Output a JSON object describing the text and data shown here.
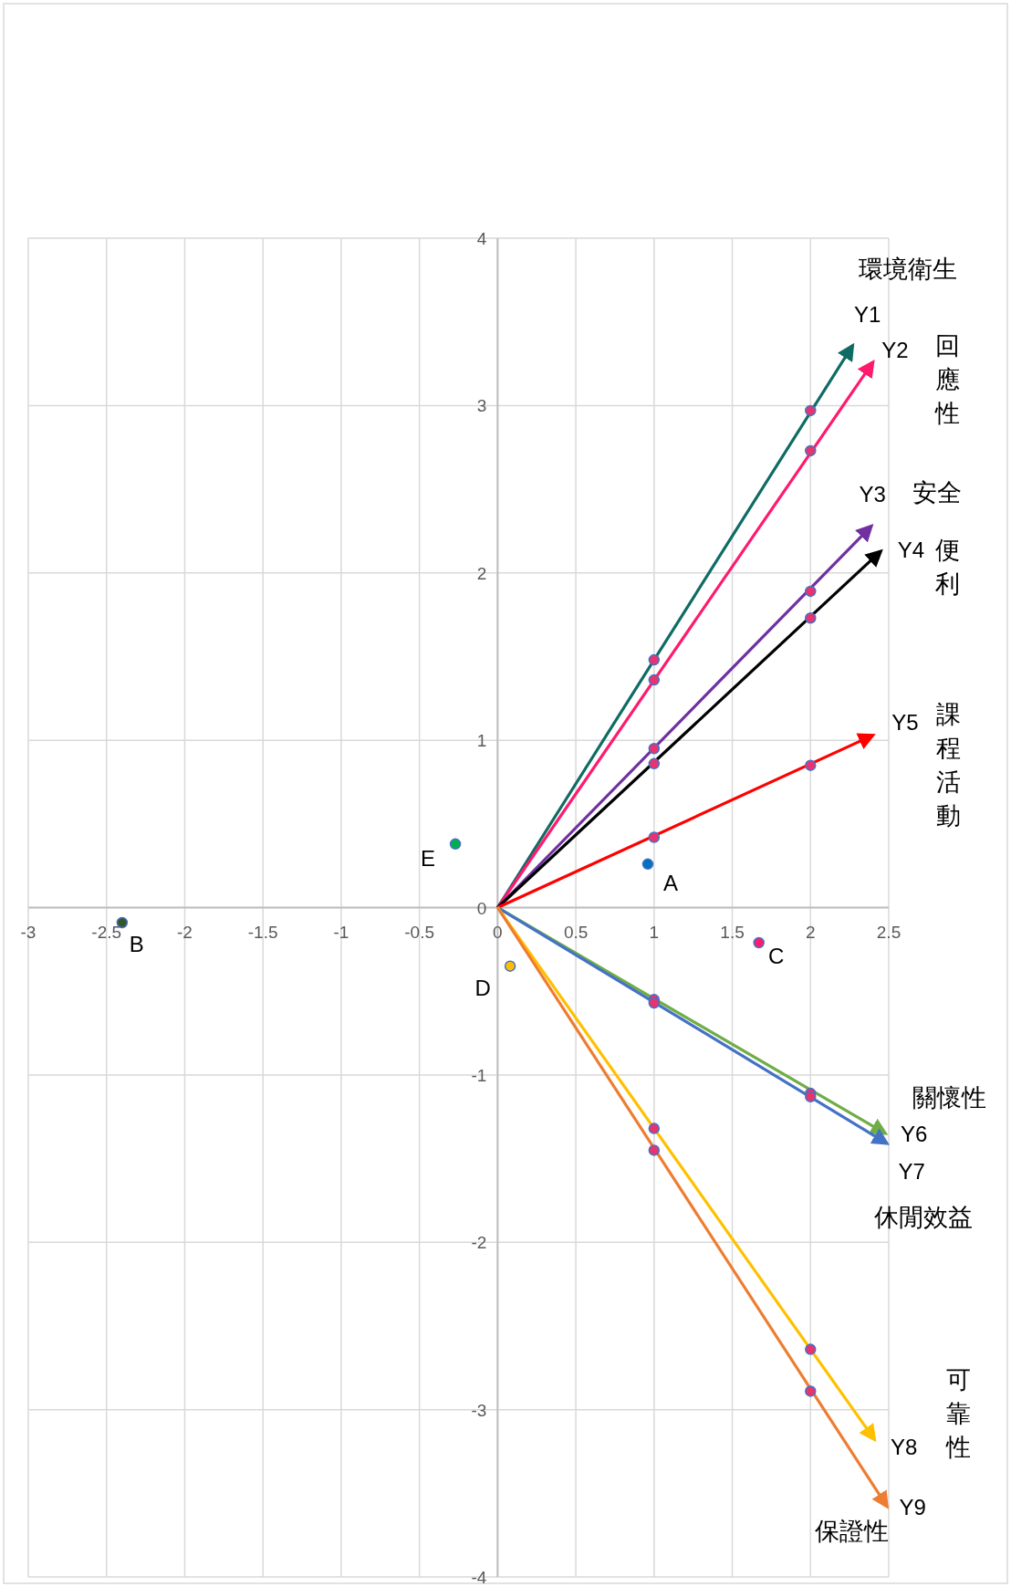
{
  "chart_data": {
    "type": "scatter",
    "xlim": [
      -3,
      2.5
    ],
    "ylim": [
      -4,
      4
    ],
    "xticks": [
      -3,
      -2.5,
      -2,
      -1.5,
      -1,
      -0.5,
      0,
      0.5,
      1,
      1.5,
      2,
      2.5
    ],
    "yticks": [
      -4,
      -3,
      -2,
      -1,
      0,
      1,
      2,
      3,
      4
    ],
    "grid": true,
    "series": [
      {
        "type": "scatter",
        "marker": "circle",
        "x": [
          0.96,
          -2.4,
          1.67,
          0.08,
          -0.27
        ],
        "values": [
          0.26,
          -0.09,
          -0.21,
          -0.35,
          0.38
        ],
        "colors": [
          "#0070c0",
          "#375623",
          "#ff1a6e",
          "#ffc000",
          "#00b050"
        ],
        "value_labels": [
          "A",
          "B",
          "C",
          "D",
          "E"
        ]
      },
      {
        "type": "scatter",
        "marker": "circle",
        "color": "#e8336e",
        "x": [
          1,
          2,
          1,
          2,
          1,
          2,
          1,
          2,
          1,
          2,
          1,
          2,
          1,
          2,
          1,
          2,
          1,
          2
        ],
        "values": [
          1.48,
          2.97,
          1.36,
          2.73,
          0.95,
          1.89,
          0.86,
          1.73,
          0.42,
          0.85,
          -0.55,
          -1.11,
          -0.57,
          -1.13,
          -1.32,
          -2.64,
          -1.45,
          -2.89
        ]
      },
      {
        "name": "Y1",
        "type": "line",
        "marker": "none",
        "color": "#0f6b64",
        "x": [
          0,
          2.27
        ],
        "values": [
          0,
          3.36
        ]
      },
      {
        "name": "Y2",
        "type": "line",
        "marker": "none",
        "color": "#ff1a6e",
        "x": [
          0,
          2.4
        ],
        "values": [
          0,
          3.26
        ]
      },
      {
        "name": "Y3",
        "type": "line",
        "marker": "none",
        "color": "#7030a0",
        "x": [
          0,
          2.39
        ],
        "values": [
          0,
          2.28
        ]
      },
      {
        "name": "Y4",
        "type": "line",
        "marker": "none",
        "color": "#000000",
        "x": [
          0,
          2.45
        ],
        "values": [
          0,
          2.13
        ]
      },
      {
        "name": "Y5",
        "type": "line",
        "marker": "none",
        "color": "#ff0000",
        "x": [
          0,
          2.4
        ],
        "values": [
          0,
          1.03
        ]
      },
      {
        "name": "Y6",
        "type": "line",
        "marker": "none",
        "color": "#70ad47",
        "x": [
          0,
          2.48
        ],
        "values": [
          0,
          -1.35
        ]
      },
      {
        "name": "Y7",
        "type": "line",
        "marker": "none",
        "color": "#4472c4",
        "x": [
          0,
          2.49
        ],
        "values": [
          0,
          -1.41
        ]
      },
      {
        "name": "Y8",
        "type": "line",
        "marker": "none",
        "color": "#ffc000",
        "x": [
          0,
          2.41
        ],
        "values": [
          0,
          -3.18
        ]
      },
      {
        "name": "Y9",
        "type": "line",
        "marker": "none",
        "color": "#ed7d31",
        "x": [
          0,
          2.49
        ],
        "values": [
          0,
          -3.58
        ]
      }
    ],
    "annotations": [
      "環境衛生",
      "回應性",
      "安全",
      "便利",
      "課程活動",
      "關懷性",
      "休閒效益",
      "可靠性",
      "保證性"
    ]
  }
}
